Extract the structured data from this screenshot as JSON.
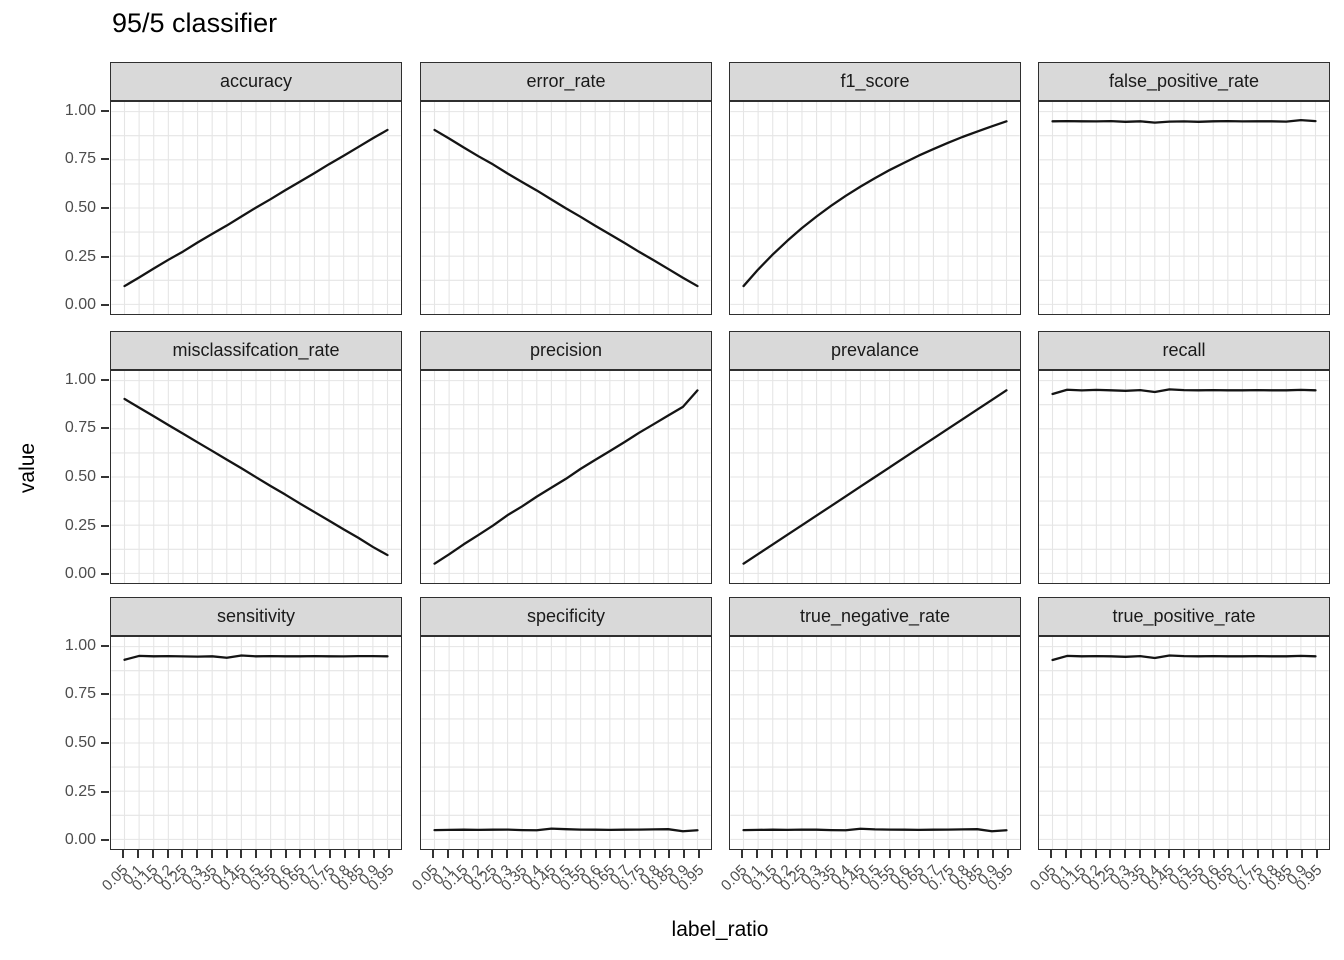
{
  "title": "95/5 classifier",
  "axes": {
    "x_label": "label_ratio",
    "y_label": "value",
    "y_tick_labels": [
      "1.00",
      "0.75",
      "0.50",
      "0.25",
      "0.00"
    ],
    "x_tick_labels": [
      "0.05",
      "0.1",
      "0.15",
      "0.2",
      "0.25",
      "0.3",
      "0.35",
      "0.4",
      "0.45",
      "0.5",
      "0.55",
      "0.6",
      "0.65",
      "0.7",
      "0.75",
      "0.8",
      "0.85",
      "0.9",
      "0.95"
    ]
  },
  "colors": {
    "line": "#141414",
    "strip_background": "#D9D9D9",
    "panel_border": "#2F2F2F",
    "grid_line": "#E5E5E5",
    "axis_text": "#4D4D4D",
    "tick_mark": "#333333",
    "title_text": "#000000",
    "background": "#FFFFFF"
  },
  "chart_data": {
    "type": "line",
    "title": "95/5 classifier",
    "xlabel": "label_ratio",
    "ylabel": "value",
    "grid": "on",
    "legend": "none",
    "ylim": [
      0,
      1
    ],
    "y_breaks": [
      0,
      0.25,
      0.5,
      0.75,
      1
    ],
    "y_minor_step": 0.125,
    "x": [
      0.05,
      0.1,
      0.15,
      0.2,
      0.25,
      0.3,
      0.35,
      0.4,
      0.45,
      0.5,
      0.55,
      0.6,
      0.65,
      0.7,
      0.75,
      0.8,
      0.85,
      0.9,
      0.95
    ],
    "facet_layout": {
      "rows": 3,
      "cols": 4
    },
    "facets": [
      {
        "name": "accuracy",
        "values": [
          0.095,
          0.139,
          0.186,
          0.231,
          0.274,
          0.321,
          0.366,
          0.409,
          0.456,
          0.502,
          0.546,
          0.592,
          0.636,
          0.681,
          0.727,
          0.771,
          0.816,
          0.862,
          0.905
        ]
      },
      {
        "name": "error_rate",
        "values": [
          0.905,
          0.861,
          0.814,
          0.769,
          0.726,
          0.679,
          0.634,
          0.591,
          0.544,
          0.498,
          0.454,
          0.408,
          0.364,
          0.319,
          0.273,
          0.229,
          0.184,
          0.138,
          0.095
        ]
      },
      {
        "name": "f1_score",
        "values": [
          0.095,
          0.181,
          0.259,
          0.33,
          0.396,
          0.456,
          0.512,
          0.563,
          0.611,
          0.655,
          0.697,
          0.735,
          0.772,
          0.806,
          0.838,
          0.869,
          0.897,
          0.924,
          0.95
        ]
      },
      {
        "name": "false_positive_rate",
        "values": [
          0.95,
          0.951,
          0.95,
          0.949,
          0.951,
          0.947,
          0.95,
          0.943,
          0.948,
          0.949,
          0.947,
          0.95,
          0.951,
          0.949,
          0.95,
          0.95,
          0.948,
          0.956,
          0.951
        ]
      },
      {
        "name": "misclassifcation_rate",
        "values": [
          0.905,
          0.86,
          0.815,
          0.77,
          0.725,
          0.68,
          0.635,
          0.59,
          0.545,
          0.499,
          0.453,
          0.409,
          0.363,
          0.318,
          0.274,
          0.228,
          0.185,
          0.137,
          0.095
        ]
      },
      {
        "name": "precision",
        "values": [
          0.05,
          0.099,
          0.151,
          0.199,
          0.248,
          0.302,
          0.348,
          0.398,
          0.445,
          0.491,
          0.542,
          0.589,
          0.634,
          0.681,
          0.729,
          0.774,
          0.819,
          0.864,
          0.949
        ]
      },
      {
        "name": "prevalance",
        "values": [
          0.05,
          0.1,
          0.15,
          0.2,
          0.25,
          0.3,
          0.35,
          0.4,
          0.45,
          0.5,
          0.55,
          0.6,
          0.65,
          0.7,
          0.75,
          0.8,
          0.85,
          0.9,
          0.95
        ]
      },
      {
        "name": "recall",
        "values": [
          0.931,
          0.953,
          0.949,
          0.952,
          0.95,
          0.947,
          0.951,
          0.941,
          0.955,
          0.951,
          0.95,
          0.951,
          0.95,
          0.95,
          0.951,
          0.95,
          0.95,
          0.952,
          0.95
        ]
      },
      {
        "name": "sensitivity",
        "values": [
          0.932,
          0.952,
          0.95,
          0.951,
          0.949,
          0.948,
          0.95,
          0.942,
          0.954,
          0.95,
          0.951,
          0.95,
          0.95,
          0.951,
          0.95,
          0.949,
          0.951,
          0.951,
          0.95
        ]
      },
      {
        "name": "specificity",
        "values": [
          0.048,
          0.049,
          0.05,
          0.049,
          0.05,
          0.051,
          0.048,
          0.047,
          0.056,
          0.053,
          0.051,
          0.05,
          0.049,
          0.05,
          0.051,
          0.052,
          0.053,
          0.042,
          0.047
        ]
      },
      {
        "name": "true_negative_rate",
        "values": [
          0.048,
          0.049,
          0.05,
          0.049,
          0.051,
          0.05,
          0.048,
          0.047,
          0.055,
          0.052,
          0.051,
          0.05,
          0.049,
          0.05,
          0.051,
          0.052,
          0.053,
          0.042,
          0.047
        ]
      },
      {
        "name": "true_positive_rate",
        "values": [
          0.931,
          0.952,
          0.95,
          0.951,
          0.95,
          0.947,
          0.951,
          0.941,
          0.954,
          0.951,
          0.95,
          0.951,
          0.95,
          0.95,
          0.951,
          0.95,
          0.95,
          0.952,
          0.95
        ]
      }
    ]
  }
}
